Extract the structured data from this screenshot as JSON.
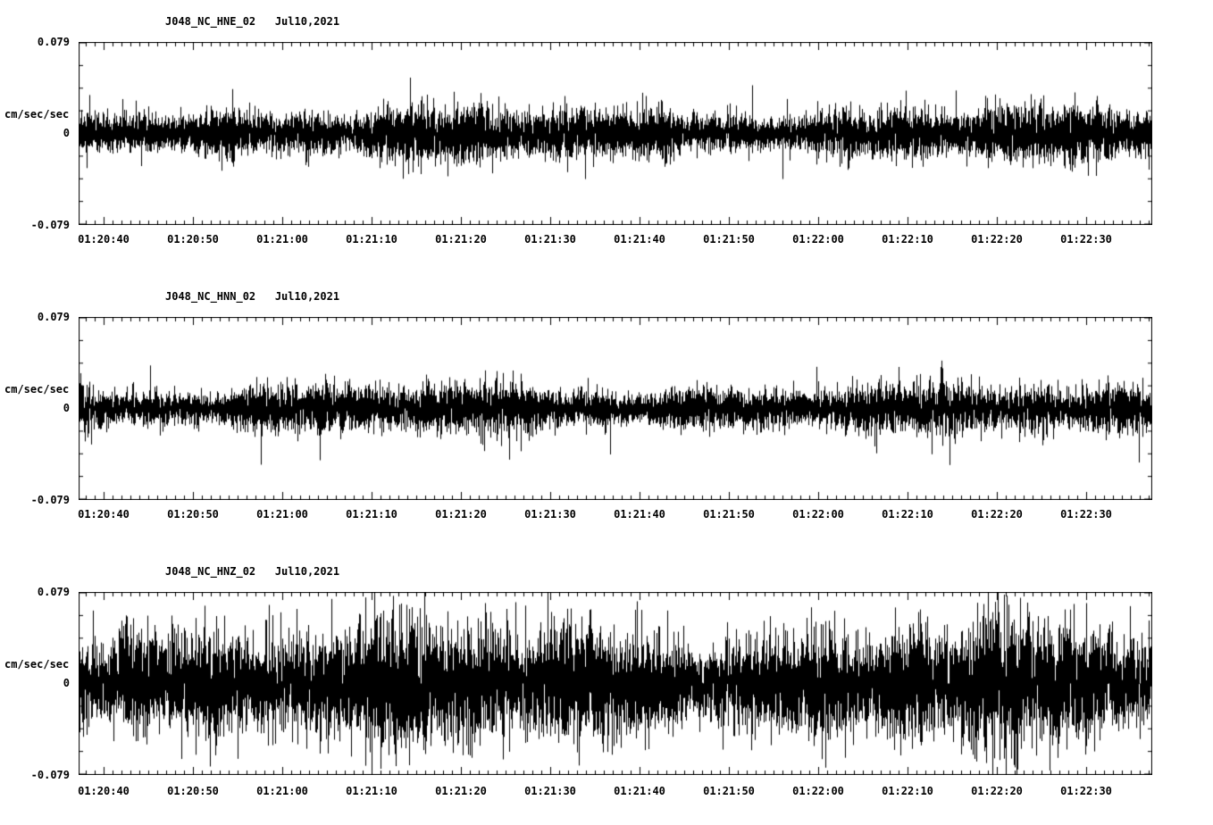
{
  "page": {
    "background_color": "#ffffff",
    "trace_color": "#000000",
    "text_color": "#000000"
  },
  "chart_data": [
    {
      "type": "line",
      "title": "J048_NC_HNE_02   Jul10,2021",
      "station": "J048_NC_HNE_02",
      "date": "Jul10,2021",
      "ylabel": "cm/sec/sec",
      "ylim": [
        -0.079,
        0.079
      ],
      "ytick_labels": [
        "0.079",
        "0",
        "-0.079"
      ],
      "xtick_labels": [
        "01:20:40",
        "01:20:50",
        "01:21:00",
        "01:21:10",
        "01:21:20",
        "01:21:30",
        "01:21:40",
        "01:21:50",
        "01:22:00",
        "01:22:10",
        "01:22:20",
        "01:22:30"
      ],
      "x_major_interval_seconds": 10,
      "x_minor_interval_seconds": 1,
      "x_span_seconds": 120,
      "grid": false,
      "legend": false,
      "series": [
        {
          "name": "J048_NC_HNE_02",
          "waveform": "continuous-seismic-noise",
          "rms_amplitude": 0.01,
          "peak_amplitude": 0.045,
          "spike_probability": 0.012,
          "seed": 11
        }
      ]
    },
    {
      "type": "line",
      "title": "J048_NC_HNN_02   Jul10,2021",
      "station": "J048_NC_HNN_02",
      "date": "Jul10,2021",
      "ylabel": "cm/sec/sec",
      "ylim": [
        -0.079,
        0.079
      ],
      "ytick_labels": [
        "0.079",
        "0",
        "-0.079"
      ],
      "xtick_labels": [
        "01:20:40",
        "01:20:50",
        "01:21:00",
        "01:21:10",
        "01:21:20",
        "01:21:30",
        "01:21:40",
        "01:21:50",
        "01:22:00",
        "01:22:10",
        "01:22:20",
        "01:22:30"
      ],
      "x_major_interval_seconds": 10,
      "x_minor_interval_seconds": 1,
      "x_span_seconds": 120,
      "grid": false,
      "legend": false,
      "series": [
        {
          "name": "J048_NC_HNN_02",
          "waveform": "continuous-seismic-noise",
          "rms_amplitude": 0.009,
          "peak_amplitude": 0.05,
          "spike_probability": 0.012,
          "seed": 22
        }
      ]
    },
    {
      "type": "line",
      "title": "J048_NC_HNZ_02   Jul10,2021",
      "station": "J048_NC_HNZ_02",
      "date": "Jul10,2021",
      "ylabel": "cm/sec/sec",
      "ylim": [
        -0.079,
        0.079
      ],
      "ytick_labels": [
        "0.079",
        "0",
        "-0.079"
      ],
      "xtick_labels": [
        "01:20:40",
        "01:20:50",
        "01:21:00",
        "01:21:10",
        "01:21:20",
        "01:21:30",
        "01:21:40",
        "01:21:50",
        "01:22:00",
        "01:22:10",
        "01:22:20",
        "01:22:30"
      ],
      "x_major_interval_seconds": 10,
      "x_minor_interval_seconds": 1,
      "x_span_seconds": 120,
      "grid": false,
      "legend": false,
      "series": [
        {
          "name": "J048_NC_HNZ_02",
          "waveform": "continuous-seismic-noise",
          "rms_amplitude": 0.022,
          "peak_amplitude": 0.07,
          "spike_probability": 0.06,
          "seed": 33
        }
      ]
    }
  ]
}
